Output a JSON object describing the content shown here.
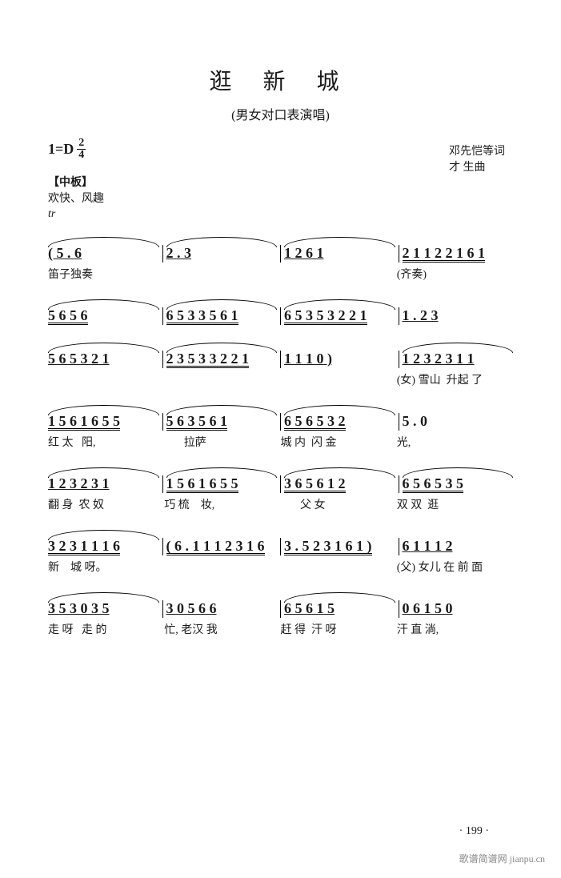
{
  "title": "逛 新 城",
  "subtitle": "(男女对口表演唱)",
  "keytime": {
    "prefix": "1=D",
    "num": "2",
    "den": "4"
  },
  "credits": {
    "line1": "邓先恺等词",
    "line2": "才   生曲"
  },
  "tempo": {
    "bracket": "【中板】",
    "mood": "欢快、风趣",
    "tr": "tr"
  },
  "lines": [
    {
      "notation": [
        "( 5 .    6",
        "2 .    3",
        "1  2    6  1",
        "2 1 1 2   2 1 6 1"
      ],
      "lyrics": [
        "笛子独奏",
        "",
        "",
        "(齐奏)"
      ]
    },
    {
      "notation": [
        "5 6 5    6",
        "6 5 3   3 5 6 1",
        "6 5 3 5   3 2 2 1",
        "1  .      2 3"
      ],
      "lyrics": [
        "",
        "",
        "",
        ""
      ]
    },
    {
      "notation": [
        "5  6 5   3 2 1",
        "2 3 5 3   3 2 2 1",
        "1 1    1 0 )",
        "1  2 3  2 3 1  1"
      ],
      "lyrics": [
        "",
        "",
        "",
        "(女) 雪山  升起 了"
      ]
    },
    {
      "notation": [
        "1 5 6 1   6 5 5",
        "5 6    3 5 6 1",
        "6 5    6 5 3 2",
        "5  .       0"
      ],
      "lyrics": [
        "红 太   阳,",
        "       拉萨",
        "城 内  闪 金",
        "光,"
      ]
    },
    {
      "notation": [
        "1  2 3  2 3 1",
        "1 5 6 1   6 5 5",
        "3 6    5 6 1 2",
        "6 5    6 5 3 5"
      ],
      "lyrics": [
        "翻 身  农 奴",
        "巧 梳    妆,",
        "       父 女",
        "双 双  逛"
      ]
    },
    {
      "notation": [
        "3 2 3 1  1 1 6",
        "( 6 . 1 1 1   2 3 1 6",
        "3 . 5 2 3  1 6 1 )",
        "6  1 1  1  2"
      ],
      "lyrics": [
        "新    城 呀。",
        "",
        "",
        "(父) 女儿 在 前 面"
      ]
    },
    {
      "notation": [
        "3 5 3   0 3 5",
        "3 0  5 6 6",
        "6 5    6 1 5",
        "0 6 1  5 0"
      ],
      "lyrics": [
        "走 呀   走 的",
        "忙, 老汉 我",
        "赶 得  汗 呀",
        "汗 直 淌,"
      ]
    }
  ],
  "pagenum": "· 199 ·",
  "watermark": "歌谱简谱网 jianpu.cn",
  "colors": {
    "text": "#1a1a1a",
    "bg": "#ffffff",
    "wm": "#888888"
  }
}
